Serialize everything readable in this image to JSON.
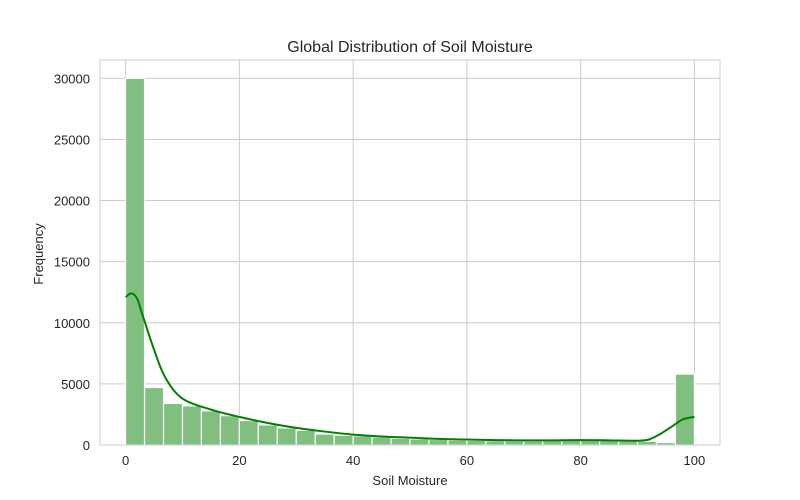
{
  "chart_data": {
    "type": "bar",
    "title": "Global Distribution of Soil Moisture",
    "xlabel": "Soil Moisture",
    "ylabel": "Frequency",
    "xlim": [
      -4.5,
      104.5
    ],
    "ylim": [
      0,
      31500
    ],
    "xticks": [
      0,
      20,
      40,
      60,
      80,
      100
    ],
    "yticks": [
      0,
      5000,
      10000,
      15000,
      20000,
      25000,
      30000
    ],
    "grid": true,
    "bin_edges": [
      0,
      3.33,
      6.67,
      10,
      13.33,
      16.67,
      20,
      23.33,
      26.67,
      30,
      33.33,
      36.67,
      40,
      43.33,
      46.67,
      50,
      53.33,
      56.67,
      60,
      63.33,
      66.67,
      70,
      73.33,
      76.67,
      80,
      83.33,
      86.67,
      90,
      93.33,
      96.67,
      100
    ],
    "counts": [
      30000,
      4700,
      3400,
      3200,
      2800,
      2400,
      2000,
      1650,
      1400,
      1200,
      900,
      800,
      750,
      650,
      550,
      500,
      450,
      400,
      380,
      350,
      340,
      330,
      360,
      380,
      420,
      400,
      330,
      300,
      200,
      5800
    ],
    "kde": {
      "x": [
        0,
        1,
        2,
        3,
        5,
        7,
        10,
        15,
        20,
        25,
        30,
        35,
        40,
        45,
        50,
        55,
        60,
        65,
        70,
        75,
        80,
        85,
        90,
        92,
        94,
        96,
        98,
        100
      ],
      "y": [
        12100,
        12400,
        12000,
        10600,
        7800,
        5500,
        3800,
        2900,
        2300,
        1800,
        1400,
        1100,
        850,
        700,
        600,
        500,
        450,
        400,
        380,
        380,
        400,
        380,
        350,
        450,
        900,
        1500,
        2100,
        2300
      ]
    },
    "colors": {
      "bar_fill": "#80bf80",
      "bar_edge": "#ffffff",
      "kde_line": "#008000",
      "grid": "#cccccc",
      "spine": "#cccccc"
    }
  }
}
